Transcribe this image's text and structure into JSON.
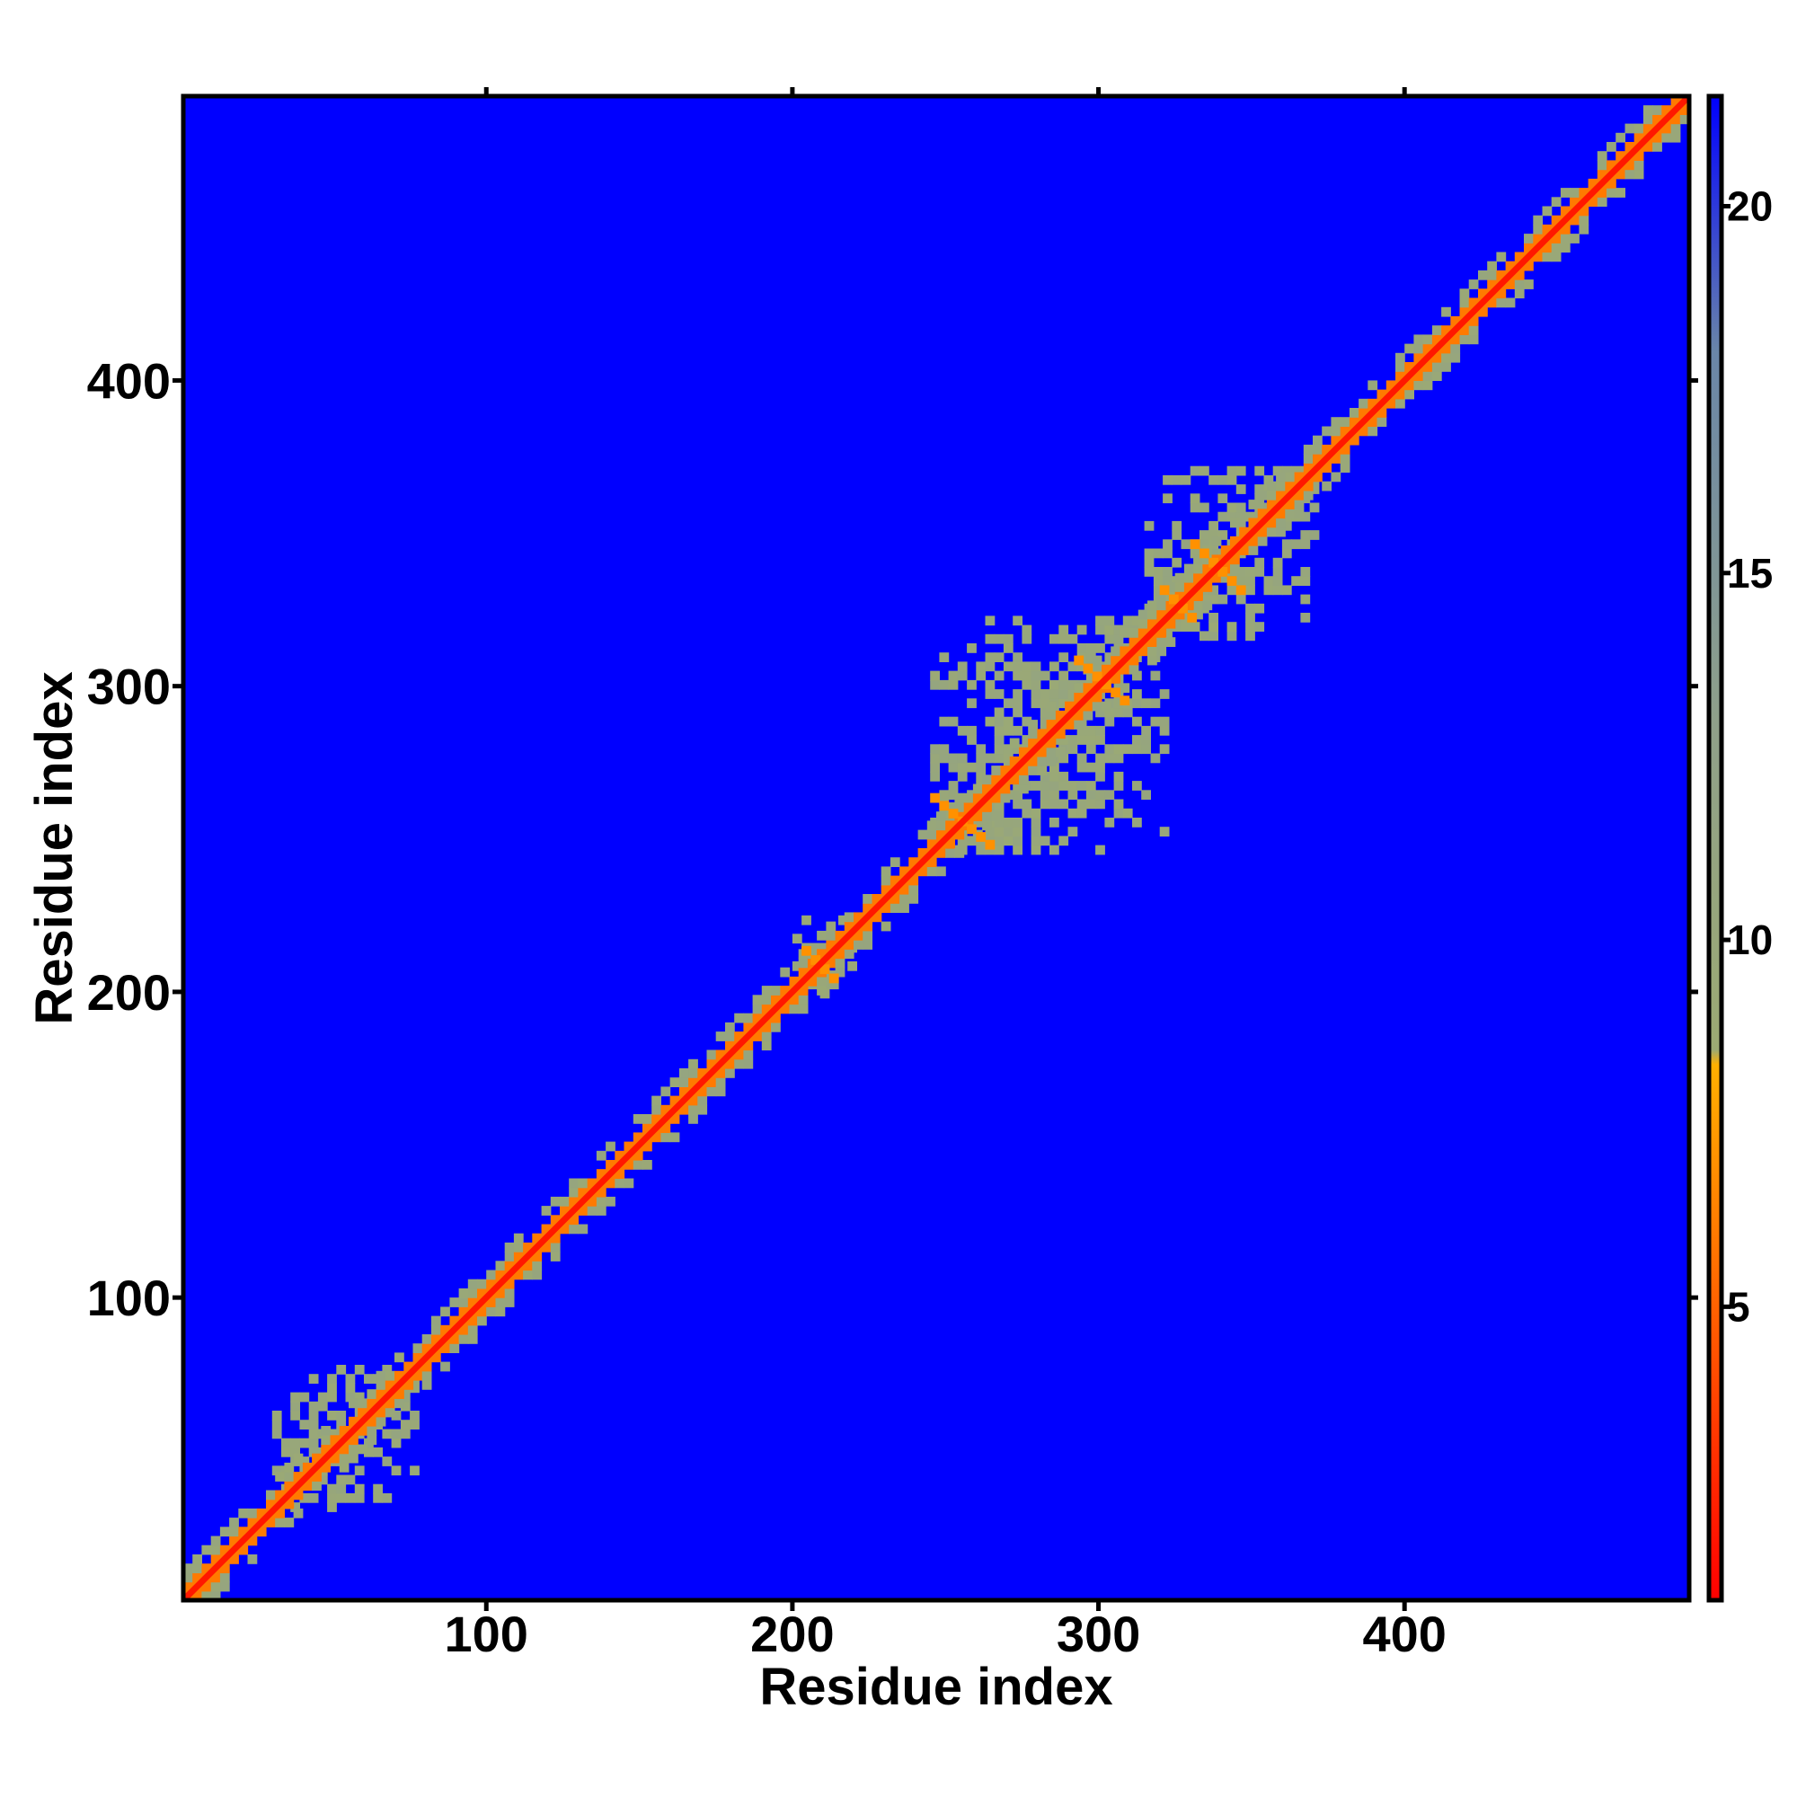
{
  "chart_data": {
    "type": "heatmap",
    "title": "",
    "xlabel": "Residue index",
    "ylabel": "Residue index",
    "xlim": [
      1,
      493
    ],
    "ylim": [
      1,
      493
    ],
    "xticks": [
      100,
      200,
      300,
      400
    ],
    "yticks": [
      100,
      200,
      300,
      400
    ],
    "colorbar": {
      "range": [
        1,
        21.5
      ],
      "ticks": [
        5,
        10,
        15,
        20
      ],
      "stops": [
        {
          "value": 1,
          "color": "#ff0000"
        },
        {
          "value": 6,
          "color": "#ff7a00"
        },
        {
          "value": 8.3,
          "color": "#ffb000"
        },
        {
          "value": 8.5,
          "color": "#9caa73"
        },
        {
          "value": 13,
          "color": "#8fa08a"
        },
        {
          "value": 18,
          "color": "#6a86a8"
        },
        {
          "value": 21.5,
          "color": "#0000ff"
        }
      ]
    },
    "background_value": 21.5,
    "features": {
      "diagonal": {
        "from": 1,
        "to": 493,
        "value": 2
      },
      "near_diagonal_band_value": 6,
      "clusters": [
        {
          "x": [
            30,
            75
          ],
          "y": [
            30,
            75
          ],
          "value": 10
        },
        {
          "x": [
            200,
            220
          ],
          "y": [
            198,
            222
          ],
          "value": 10
        },
        {
          "x": [
            245,
            320
          ],
          "y": [
            245,
            320
          ],
          "value": 10
        },
        {
          "x": [
            315,
            370
          ],
          "y": [
            315,
            370
          ],
          "value": 10
        }
      ],
      "cross_contacts": [
        {
          "x": [
            245,
            265
          ],
          "y": [
            262,
            245
          ],
          "value": 7
        },
        {
          "x": [
            292,
            308
          ],
          "y": [
            307,
            293
          ],
          "value": 7
        },
        {
          "x": [
            320,
            330
          ],
          "y": [
            330,
            320
          ],
          "value": 7
        },
        {
          "x": [
            330,
            345
          ],
          "y": [
            345,
            330
          ],
          "value": 7
        },
        {
          "x": [
            203,
            212
          ],
          "y": [
            212,
            203
          ],
          "value": 7
        }
      ]
    }
  }
}
